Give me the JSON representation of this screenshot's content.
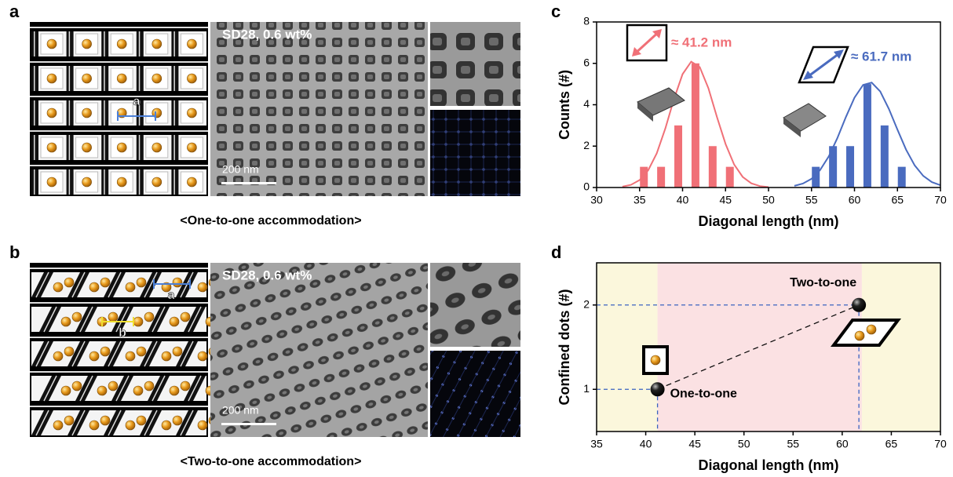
{
  "panels": {
    "a": {
      "label": "a",
      "caption": "<One-to-one accommodation>",
      "image_label": "SD28, 0.6 wt%",
      "scale_bar": "200 nm",
      "schematic_labels": [
        "a"
      ]
    },
    "b": {
      "label": "b",
      "caption": "<Two-to-one accommodation>",
      "image_label": "SD28, 0.6 wt%",
      "scale_bar": "200 nm",
      "schematic_labels": [
        "a",
        "b"
      ]
    }
  },
  "chart_data": [
    {
      "type": "bar",
      "label": "c",
      "xlabel": "Diagonal length (nm)",
      "ylabel": "Counts (#)",
      "xlim": [
        30,
        70
      ],
      "ylim": [
        0,
        8
      ],
      "xticks": [
        30,
        35,
        40,
        45,
        50,
        55,
        60,
        65,
        70
      ],
      "yticks": [
        0,
        2,
        4,
        6,
        8
      ],
      "series": [
        {
          "color": "#f07077",
          "x": [
            35.5,
            37.5,
            39.5,
            41.5,
            43.5,
            45.5
          ],
          "values": [
            1,
            1,
            3,
            6,
            2,
            1
          ]
        },
        {
          "color": "#4a6bbf",
          "x": [
            55.5,
            57.5,
            59.5,
            61.5,
            63.5,
            65.5
          ],
          "values": [
            1,
            2,
            2,
            5,
            3,
            1
          ]
        }
      ],
      "fits": [
        {
          "color": "#f07077",
          "x": [
            33,
            34,
            35,
            36,
            37,
            38,
            39,
            40,
            41,
            42,
            43,
            44,
            45,
            46,
            47,
            48,
            49,
            50
          ],
          "values": [
            0.04,
            0.13,
            0.36,
            0.83,
            1.65,
            2.86,
            4.27,
            5.48,
            6.08,
            5.82,
            4.8,
            3.41,
            2.1,
            1.11,
            0.51,
            0.2,
            0.07,
            0.02
          ]
        },
        {
          "color": "#4a6bbf",
          "x": [
            53,
            54,
            55,
            56,
            57,
            58,
            59,
            60,
            61,
            62,
            63,
            64,
            65,
            66,
            67,
            68,
            69,
            70
          ],
          "values": [
            0.08,
            0.19,
            0.42,
            0.84,
            1.5,
            2.38,
            3.4,
            4.34,
            4.96,
            5.07,
            4.64,
            3.8,
            2.79,
            1.83,
            1.07,
            0.56,
            0.26,
            0.11
          ]
        }
      ],
      "annotations": [
        {
          "text": "≈ 41.2 nm",
          "color": "#f07077"
        },
        {
          "text": "≈ 61.7 nm",
          "color": "#4a6bbf"
        }
      ]
    },
    {
      "type": "scatter",
      "label": "d",
      "xlabel": "Diagonal length (nm)",
      "ylabel": "Confined dots (#)",
      "xlim": [
        35,
        70
      ],
      "ylim": [
        0.5,
        2.5
      ],
      "xticks": [
        35,
        40,
        45,
        50,
        55,
        60,
        65,
        70
      ],
      "yticks": [
        1,
        2
      ],
      "regions": [
        {
          "from": 35,
          "to": 41.2,
          "color": "#fbf7dc"
        },
        {
          "from": 41.2,
          "to": 62,
          "color": "#fbe1e3"
        },
        {
          "from": 62,
          "to": 70,
          "color": "#fbf7dc"
        }
      ],
      "x": [
        41.2,
        61.7
      ],
      "values": [
        1,
        2
      ],
      "point_labels": [
        "One-to-one",
        "Two-to-one"
      ]
    }
  ]
}
